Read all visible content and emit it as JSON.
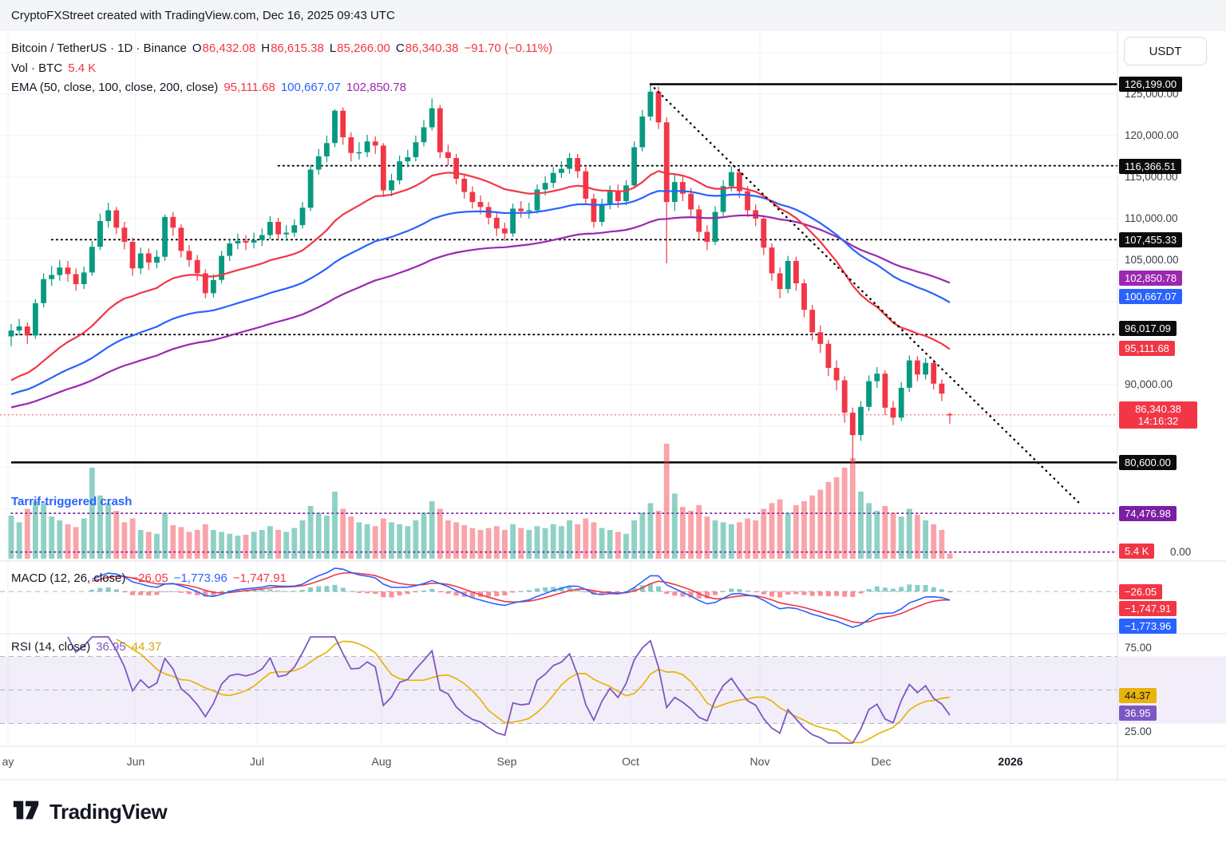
{
  "header": {
    "attribution": "CryptoFXStreet created with TradingView.com, Dec 16, 2025 09:43 UTC"
  },
  "toolbar": {
    "currency_button": "USDT"
  },
  "legend": {
    "title": "Bitcoin / TetherUS · 1D · Binance",
    "ohlc": [
      {
        "k": "O",
        "v": "86,432.08"
      },
      {
        "k": "H",
        "v": "86,615.38"
      },
      {
        "k": "L",
        "v": "85,266.00"
      },
      {
        "k": "C",
        "v": "86,340.38"
      }
    ],
    "change": "−91.70 (−0.11%)",
    "vol_label": "Vol · BTC",
    "vol_value": "5.4 K",
    "ema_label": "EMA (50, close, 100, close, 200, close)",
    "ema_values": [
      "95,111.68",
      "100,667.07",
      "102,850.78"
    ]
  },
  "annotation": "Tarrif-triggered crash",
  "macd_panel": {
    "label": "MACD (12, 26, close)",
    "values": [
      {
        "text": "−26.05",
        "color": "#F23645"
      },
      {
        "text": "−1,773.96",
        "color": "#2962FF"
      },
      {
        "text": "−1,747.91",
        "color": "#F23645"
      }
    ]
  },
  "rsi_panel": {
    "label": "RSI (14, close)",
    "values": [
      {
        "text": "36.95",
        "color": "#7E57C2"
      },
      {
        "text": "44.37",
        "color": "#D9A50B"
      }
    ],
    "tick_labels": [
      {
        "text": "75.00",
        "value": 75
      },
      {
        "text": "25.00",
        "value": 25
      }
    ]
  },
  "price_scale": {
    "ticks": [
      {
        "text": "125,000.00",
        "value": 125000
      },
      {
        "text": "120,000.00",
        "value": 120000
      },
      {
        "text": "115,000.00",
        "value": 115000
      },
      {
        "text": "110,000.00",
        "value": 110000
      },
      {
        "text": "105,000.00",
        "value": 105000
      },
      {
        "text": "90,000.00",
        "value": 90000
      }
    ],
    "badges": [
      {
        "text": "126,199.00",
        "value": 126199.0,
        "bg": "#0C0C0C",
        "fg": "#fff",
        "dy": 0
      },
      {
        "text": "116,366.51",
        "value": 116366.51,
        "bg": "#0C0C0C",
        "fg": "#fff",
        "dy": 0
      },
      {
        "text": "107,455.33",
        "value": 107455.33,
        "bg": "#0C0C0C",
        "fg": "#fff",
        "dy": 0
      },
      {
        "text": "102,850.78",
        "value": 102850.78,
        "bg": "#9C27B0",
        "fg": "#fff",
        "dy": 0
      },
      {
        "text": "100,667.07",
        "value": 100667.07,
        "bg": "#2962FF",
        "fg": "#fff",
        "dy": 0
      },
      {
        "text": "96,017.09",
        "value": 96017.09,
        "bg": "#0C0C0C",
        "fg": "#fff",
        "dy": -8
      },
      {
        "text": "95,111.68",
        "value": 95111.68,
        "bg": "#F23645",
        "fg": "#fff",
        "dy": 7
      },
      {
        "text": "80,600.00",
        "value": 80600.0,
        "bg": "#0C0C0C",
        "fg": "#fff",
        "dy": 0
      },
      {
        "text": "74,476.98",
        "value": 74476.98,
        "bg": "#7B1FA2",
        "fg": "#fff",
        "dy": 0
      }
    ],
    "current": {
      "price": "86,340.38",
      "countdown": "14:16:32",
      "value": 86340.38,
      "bg": "#F23645"
    },
    "volume_zero_label": "0.00",
    "volume_badge": {
      "text": "5.4 K",
      "bg": "#F23645"
    }
  },
  "macd_badges": [
    {
      "text": "−26.05",
      "bg": "#F23645",
      "role": "hist"
    },
    {
      "text": "−1,747.91",
      "bg": "#F23645",
      "role": "signal"
    },
    {
      "text": "−1,773.96",
      "bg": "#2962FF",
      "role": "macd"
    }
  ],
  "rsi_badges": [
    {
      "text": "44.37",
      "value": 44.37,
      "bg": "#E8B40B",
      "fg": "#131722"
    },
    {
      "text": "36.95",
      "value": 36.95,
      "bg": "#7E57C2",
      "fg": "#fff"
    }
  ],
  "footer": {
    "brand": "TradingView"
  },
  "colors": {
    "up": "#089981",
    "down": "#F23645",
    "ema50": "#F23645",
    "ema100": "#2962FF",
    "ema200": "#9C27B0",
    "macd_line": "#2962FF",
    "macd_signal": "#F23645",
    "rsi_line": "#7E57C2",
    "rsi_ma": "#E8B40B",
    "level_black": "#000000",
    "level_purple": "#7B1FA2"
  },
  "chart_data": {
    "type": "candlestick",
    "title": "Bitcoin / TetherUS, 1D, Binance",
    "x_tick_labels": [
      "ay",
      "Jun",
      "Jul",
      "Aug",
      "Sep",
      "Oct",
      "Nov",
      "Dec",
      "2026"
    ],
    "y_range": [
      69000,
      132500
    ],
    "ohlcv_note": "[open, high, low, close, volume_kBTC] per bar, ~2-day bars May–Dec 16 2025",
    "ohlcv": [
      [
        95800,
        97300,
        94600,
        96500,
        45
      ],
      [
        96500,
        97900,
        95900,
        97000,
        38
      ],
      [
        97000,
        97500,
        94900,
        95900,
        52
      ],
      [
        95900,
        100300,
        95500,
        99800,
        60
      ],
      [
        99800,
        103400,
        99300,
        102700,
        58
      ],
      [
        102700,
        104300,
        101900,
        103200,
        44
      ],
      [
        103200,
        105000,
        102500,
        104100,
        40
      ],
      [
        104100,
        104900,
        102400,
        103300,
        36
      ],
      [
        103300,
        104000,
        101300,
        102100,
        33
      ],
      [
        102100,
        104200,
        101500,
        103500,
        42
      ],
      [
        103500,
        107300,
        103100,
        106600,
        95
      ],
      [
        106600,
        110600,
        106200,
        109700,
        66
      ],
      [
        109700,
        111900,
        108900,
        111000,
        58
      ],
      [
        111000,
        111400,
        108100,
        108900,
        50
      ],
      [
        108900,
        109600,
        106300,
        107200,
        38
      ],
      [
        107200,
        107700,
        103100,
        104000,
        42
      ],
      [
        104000,
        106500,
        103300,
        105800,
        30
      ],
      [
        105800,
        106400,
        103800,
        104700,
        28
      ],
      [
        104700,
        106200,
        104000,
        105400,
        26
      ],
      [
        105400,
        110500,
        104900,
        110200,
        48
      ],
      [
        110200,
        110800,
        107900,
        108900,
        35
      ],
      [
        108900,
        109300,
        105300,
        106100,
        33
      ],
      [
        106100,
        106800,
        104200,
        105000,
        28
      ],
      [
        105000,
        105600,
        102500,
        103400,
        30
      ],
      [
        103400,
        103900,
        100400,
        101000,
        36
      ],
      [
        101000,
        103300,
        100500,
        102600,
        30
      ],
      [
        102600,
        106100,
        102200,
        105500,
        28
      ],
      [
        105500,
        107600,
        104900,
        107000,
        26
      ],
      [
        107000,
        108200,
        106300,
        107300,
        24
      ],
      [
        107300,
        108000,
        106200,
        107100,
        25
      ],
      [
        107100,
        108300,
        106400,
        107400,
        28
      ],
      [
        107400,
        108800,
        106700,
        108000,
        30
      ],
      [
        108000,
        110300,
        107500,
        109600,
        34
      ],
      [
        109600,
        110100,
        107400,
        108100,
        30
      ],
      [
        108100,
        109200,
        107300,
        108300,
        28
      ],
      [
        108300,
        109900,
        107800,
        109200,
        32
      ],
      [
        109200,
        112000,
        108800,
        111300,
        40
      ],
      [
        111300,
        116500,
        110900,
        115900,
        55
      ],
      [
        115900,
        118400,
        115300,
        117500,
        48
      ],
      [
        117500,
        120000,
        116800,
        119100,
        45
      ],
      [
        119100,
        123200,
        118600,
        123000,
        70
      ],
      [
        123000,
        123400,
        118900,
        119800,
        52
      ],
      [
        119800,
        120400,
        116900,
        117900,
        44
      ],
      [
        117900,
        119200,
        117100,
        118000,
        38
      ],
      [
        118000,
        120100,
        117400,
        119300,
        36
      ],
      [
        119300,
        119900,
        117800,
        118800,
        34
      ],
      [
        118800,
        119100,
        112600,
        113400,
        42
      ],
      [
        113400,
        115400,
        112700,
        114600,
        38
      ],
      [
        114600,
        117600,
        114100,
        116900,
        36
      ],
      [
        116900,
        118300,
        116200,
        117400,
        34
      ],
      [
        117400,
        120000,
        116900,
        119200,
        40
      ],
      [
        119200,
        121900,
        118700,
        121000,
        48
      ],
      [
        121000,
        124500,
        120600,
        123300,
        60
      ],
      [
        123300,
        123700,
        117300,
        118000,
        52
      ],
      [
        118000,
        118900,
        116400,
        117300,
        40
      ],
      [
        117300,
        117800,
        114100,
        114800,
        38
      ],
      [
        114800,
        115400,
        112400,
        113200,
        35
      ],
      [
        113200,
        113900,
        111200,
        112000,
        32
      ],
      [
        112000,
        112800,
        110500,
        111400,
        30
      ],
      [
        111400,
        112000,
        109300,
        110100,
        32
      ],
      [
        110100,
        110700,
        107900,
        108800,
        34
      ],
      [
        108800,
        109500,
        107300,
        108200,
        30
      ],
      [
        108200,
        111800,
        107800,
        111200,
        36
      ],
      [
        111200,
        112100,
        110100,
        110900,
        32
      ],
      [
        110900,
        111900,
        110000,
        111000,
        30
      ],
      [
        111000,
        114100,
        110600,
        113500,
        34
      ],
      [
        113500,
        115100,
        112800,
        114300,
        32
      ],
      [
        114300,
        116200,
        113700,
        115500,
        36
      ],
      [
        115500,
        116900,
        114900,
        116000,
        34
      ],
      [
        116000,
        117900,
        115400,
        117300,
        40
      ],
      [
        117300,
        117800,
        114900,
        115700,
        36
      ],
      [
        115700,
        116200,
        111700,
        112400,
        42
      ],
      [
        112400,
        113000,
        108900,
        109600,
        38
      ],
      [
        109600,
        112400,
        109100,
        111700,
        32
      ],
      [
        111700,
        114000,
        111100,
        113400,
        30
      ],
      [
        113400,
        114100,
        111300,
        112100,
        28
      ],
      [
        112100,
        114600,
        111600,
        114000,
        26
      ],
      [
        114000,
        119300,
        113600,
        118600,
        40
      ],
      [
        118600,
        123100,
        118100,
        122300,
        48
      ],
      [
        122300,
        126199,
        121800,
        125300,
        58
      ],
      [
        125300,
        125900,
        120800,
        121600,
        50
      ],
      [
        121600,
        122200,
        104600,
        112000,
        120
      ],
      [
        112000,
        115300,
        110900,
        114400,
        68
      ],
      [
        114400,
        115100,
        112100,
        113000,
        54
      ],
      [
        113000,
        113700,
        110300,
        111100,
        50
      ],
      [
        111100,
        111600,
        107500,
        108400,
        56
      ],
      [
        108400,
        109200,
        106200,
        107200,
        44
      ],
      [
        107200,
        111500,
        106800,
        110800,
        40
      ],
      [
        110800,
        114600,
        110300,
        113900,
        38
      ],
      [
        113900,
        116300,
        113300,
        115600,
        36
      ],
      [
        115600,
        116100,
        112500,
        113300,
        38
      ],
      [
        113300,
        113900,
        110200,
        111000,
        42
      ],
      [
        111000,
        111700,
        109100,
        110000,
        40
      ],
      [
        110000,
        110400,
        105600,
        106500,
        52
      ],
      [
        106500,
        107000,
        102500,
        103400,
        58
      ],
      [
        103400,
        104100,
        100400,
        101500,
        62
      ],
      [
        101500,
        105500,
        101000,
        104900,
        48
      ],
      [
        104900,
        105400,
        101300,
        102200,
        56
      ],
      [
        102200,
        102700,
        98100,
        99000,
        60
      ],
      [
        99000,
        99600,
        95300,
        96300,
        66
      ],
      [
        96300,
        97100,
        93800,
        94900,
        72
      ],
      [
        94900,
        95400,
        91000,
        92000,
        80
      ],
      [
        92000,
        92900,
        89300,
        90500,
        85
      ],
      [
        90500,
        91000,
        85400,
        86600,
        95
      ],
      [
        86600,
        87200,
        80600,
        83900,
        105
      ],
      [
        83900,
        88000,
        83200,
        87300,
        70
      ],
      [
        87300,
        91100,
        86800,
        90400,
        58
      ],
      [
        90400,
        92100,
        89600,
        91300,
        50
      ],
      [
        91300,
        91700,
        86300,
        87200,
        55
      ],
      [
        87200,
        88000,
        85100,
        86000,
        48
      ],
      [
        86000,
        90300,
        85600,
        89600,
        44
      ],
      [
        89600,
        93500,
        89100,
        92900,
        52
      ],
      [
        92900,
        93400,
        90400,
        91200,
        46
      ],
      [
        91200,
        93200,
        90600,
        92600,
        40
      ],
      [
        92600,
        93000,
        89400,
        90100,
        36
      ],
      [
        90100,
        90600,
        88000,
        88900,
        30
      ],
      [
        86432,
        86615,
        85266,
        86340,
        5.4
      ]
    ],
    "emas": [
      {
        "name": "EMA 50",
        "color": "#F23645",
        "last": 95111.68
      },
      {
        "name": "EMA 100",
        "color": "#2962FF",
        "last": 100667.07
      },
      {
        "name": "EMA 200",
        "color": "#9C27B0",
        "last": 102850.78
      }
    ],
    "levels": [
      {
        "value": 126199.0,
        "style": "solid",
        "color": "#000000",
        "start_index": 79
      },
      {
        "value": 116366.51,
        "style": "dotted",
        "color": "#000000",
        "start_index": 33
      },
      {
        "value": 107455.33,
        "style": "dotted",
        "color": "#000000",
        "start_index": 5
      },
      {
        "value": 96017.09,
        "style": "dotted",
        "color": "#000000",
        "start_index": 0
      },
      {
        "value": 80600.0,
        "style": "solid",
        "color": "#000000",
        "start_index": 0
      },
      {
        "value": 74476.98,
        "style": "dotted",
        "color": "#7B1FA2",
        "start_index": 0
      },
      {
        "value": 69800.0,
        "style": "dotted",
        "color": "#7B1FA2",
        "start_index": 0
      },
      {
        "value": 86340.38,
        "style": "dotted",
        "color": "#F23645",
        "start_index": 0,
        "role": "last-price"
      }
    ],
    "trendline": {
      "from_index": 79,
      "from_price": 126199,
      "to_index": 132,
      "to_price": 75700,
      "style": "dotted",
      "color": "#000000"
    },
    "indicators": {
      "macd": {
        "fast": 12,
        "slow": 26,
        "signal": 9,
        "last_hist": -26.05,
        "last_macd": -1773.96,
        "last_signal": -1747.91
      },
      "rsi": {
        "period": 14,
        "last": 36.95,
        "ma_last": 44.37,
        "bands": [
          70,
          50,
          30
        ],
        "range_labels": [
          75,
          25
        ]
      }
    },
    "volume": {
      "last_label": "5.4 K",
      "unit": "K BTC",
      "zero_label": "0.00"
    }
  }
}
